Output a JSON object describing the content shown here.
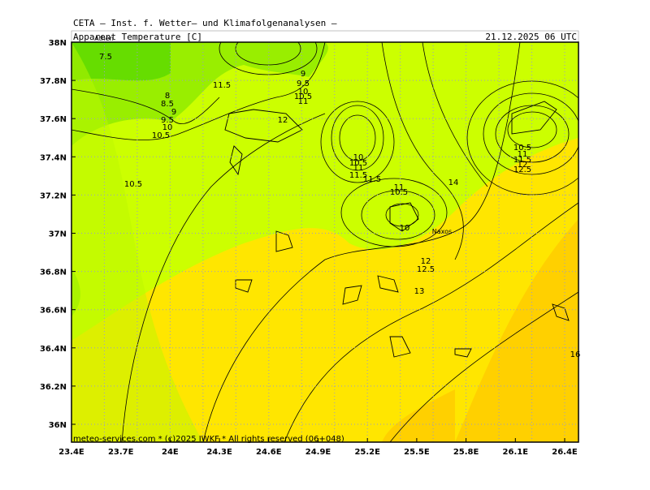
{
  "header": {
    "institute": "CETA — Inst. f. Wetter— und Klimafolgenanalysen —",
    "title": "Apparent Temperature [C]",
    "date": "21.12.2025 06 UTC"
  },
  "map": {
    "lon_labels": [
      "23.4E",
      "23.7E",
      "24E",
      "24.3E",
      "24.6E",
      "24.9E",
      "25.2E",
      "25.5E",
      "25.8E",
      "26.1E",
      "26.4E"
    ],
    "lat_labels": [
      "38N",
      "37.8N",
      "37.6N",
      "37.4N",
      "37.2N",
      "37N",
      "36.8N",
      "36.6N",
      "36.4N",
      "36.2N",
      "36N"
    ],
    "contour_labels": [
      "7.5",
      "8",
      "8.5",
      "9",
      "9.5",
      "10",
      "10.5",
      "11.5",
      "12",
      "9",
      "9.5",
      "10",
      "10.5",
      "11",
      "10",
      "10.5",
      "11",
      "11.5",
      "11.5",
      "10.5",
      "11",
      "10.5",
      "10",
      "12",
      "12.5",
      "13",
      "14",
      "10.5",
      "11",
      "11.5",
      "12",
      "12.5",
      "16"
    ],
    "places": [
      "Athen",
      "Naxos"
    ]
  },
  "footer": "meteo-services.com * (c)2025 IWKF * All rights reserved (06+048)"
}
